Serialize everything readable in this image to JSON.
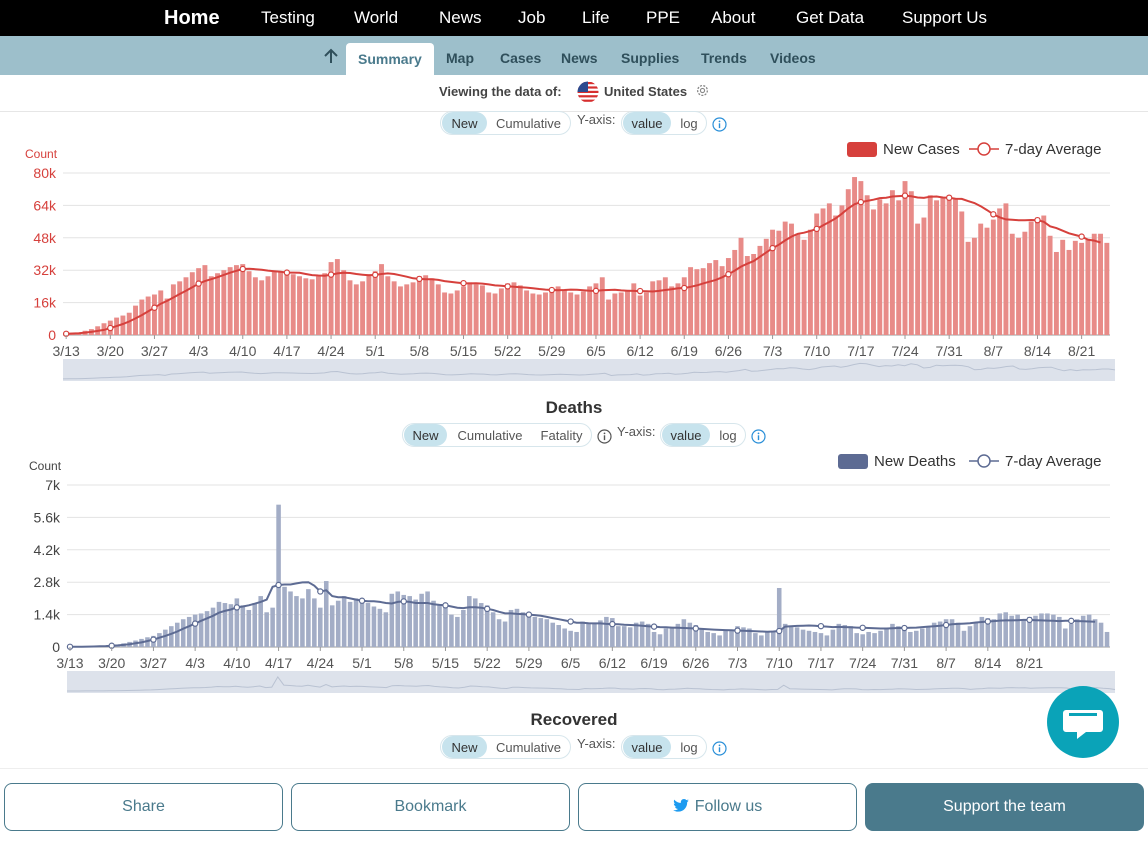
{
  "topnav": {
    "items": [
      "Home",
      "Testing",
      "World",
      "News",
      "Job",
      "Life",
      "PPE",
      "About",
      "Get Data",
      "Support Us"
    ]
  },
  "subnav": {
    "tabs": [
      "Summary",
      "Map",
      "Cases",
      "News",
      "Supplies",
      "Trends",
      "Videos"
    ],
    "active": "Summary",
    "icon": "arrow-up-icon"
  },
  "viewing": {
    "label": "Viewing the data of:",
    "country": "United States",
    "flag_icon": "us-flag-icon",
    "settings_icon": "gear-icon"
  },
  "cases_controls": {
    "mode": [
      "New",
      "Cumulative"
    ],
    "yaxis_label": "Y-axis:",
    "scale": [
      "value",
      "log"
    ],
    "selected_mode": "New",
    "selected_scale": "value"
  },
  "deaths_controls": {
    "mode": [
      "New",
      "Cumulative",
      "Fatality"
    ],
    "yaxis_label": "Y-axis:",
    "scale": [
      "value",
      "log"
    ],
    "selected_mode": "New",
    "selected_scale": "value"
  },
  "recovered_controls": {
    "mode": [
      "New",
      "Cumulative"
    ],
    "yaxis_label": "Y-axis:",
    "scale": [
      "value",
      "log"
    ],
    "selected_mode": "New",
    "selected_scale": "value"
  },
  "colors": {
    "cases_bar": "#e88b88",
    "cases_line": "#d6403c",
    "deaths_bar": "#a3adc6",
    "deaths_line": "#5d6b93",
    "nav_bg": "#000000",
    "subnav_bg": "#9dbfcb",
    "accent": "#4a7a8c",
    "chat": "#0aa3b8"
  },
  "chart_data": [
    {
      "id": "cases",
      "type": "bar",
      "title": "",
      "ylabel": "Count",
      "xlabel": "",
      "ylim": [
        0,
        80000
      ],
      "yticks": [
        "0",
        "16k",
        "32k",
        "48k",
        "64k",
        "80k"
      ],
      "legend": {
        "bar": "New Cases",
        "line": "7-day Average",
        "placement": "top-right"
      },
      "x_tick_labels": [
        "3/13",
        "3/20",
        "3/27",
        "4/3",
        "4/10",
        "4/17",
        "4/24",
        "5/1",
        "5/8",
        "5/15",
        "5/22",
        "5/29",
        "6/5",
        "6/12",
        "6/19",
        "6/26",
        "7/3",
        "7/10",
        "7/17",
        "7/24",
        "7/31",
        "8/7",
        "8/14",
        "8/21"
      ],
      "x_start": "3/13",
      "x_end": "8/23",
      "series": [
        {
          "name": "New Cases",
          "values": [
            600,
            900,
            1200,
            2100,
            2900,
            4300,
            5800,
            7100,
            8600,
            9600,
            11000,
            14500,
            17500,
            19000,
            20000,
            22000,
            18000,
            25000,
            26500,
            28500,
            31000,
            33000,
            34500,
            29000,
            30500,
            32000,
            33500,
            34500,
            35000,
            31500,
            28500,
            27000,
            29000,
            31500,
            31000,
            30500,
            30000,
            29000,
            28000,
            27500,
            29000,
            30500,
            36000,
            37500,
            32000,
            27000,
            25000,
            26500,
            30000,
            31500,
            35000,
            29000,
            26500,
            24000,
            25000,
            26000,
            29000,
            29500,
            28000,
            25000,
            21000,
            20500,
            22000,
            24000,
            26000,
            25000,
            24500,
            21000,
            20500,
            23000,
            25500,
            26000,
            24500,
            22000,
            20500,
            20000,
            21000,
            22500,
            24000,
            22500,
            21000,
            20000,
            21500,
            24000,
            25500,
            28500,
            17500,
            20500,
            21000,
            22000,
            25500,
            19500,
            21000,
            26500,
            27000,
            28500,
            24000,
            25500,
            28500,
            33500,
            32500,
            33000,
            35500,
            37000,
            34000,
            38000,
            42000,
            48000,
            39000,
            40000,
            44000,
            47500,
            52000,
            51500,
            56000,
            55000,
            50000,
            47000,
            52000,
            60000,
            62500,
            65000,
            59000,
            64000,
            72000,
            78000,
            76000,
            69000,
            62000,
            67000,
            65000,
            71500,
            66500,
            76000,
            71000,
            55000,
            58000,
            69000,
            66500,
            68000,
            69000,
            67000,
            61000,
            46000,
            48000,
            55000,
            53000,
            57000,
            62500,
            65000,
            50000,
            48000,
            51000,
            56000,
            58000,
            59000,
            49000,
            41000,
            47000,
            42000,
            46500,
            45500,
            47000,
            50000,
            50000,
            45500
          ],
          "color": "#e88b88"
        },
        {
          "name": "7-day Average",
          "values": [
            600,
            750,
            900,
            1200,
            1540,
            2000,
            2540,
            3430,
            4390,
            5440,
            6690,
            8190,
            9850,
            11640,
            13460,
            15470,
            16860,
            18500,
            20240,
            21850,
            23570,
            25380,
            26600,
            27560,
            28560,
            29660,
            30780,
            31720,
            32570,
            32700,
            32470,
            32200,
            31800,
            31500,
            31200,
            30800,
            30800,
            30700,
            30100,
            29600,
            29400,
            29300,
            29800,
            30400,
            30700,
            30600,
            30100,
            29800,
            29500,
            29700,
            30100,
            30400,
            30100,
            29500,
            28800,
            28000,
            27700,
            27500,
            27500,
            27200,
            26600,
            26200,
            25900,
            25600,
            25500,
            25600,
            25400,
            25000,
            24500,
            24300,
            24000,
            23800,
            23600,
            23400,
            23100,
            22700,
            22400,
            22200,
            22100,
            22200,
            22400,
            22300,
            22100,
            21900,
            21800,
            22100,
            22200,
            22300,
            22000,
            21900,
            21800,
            21700,
            21600,
            21500,
            21800,
            22200,
            22600,
            23100,
            23200,
            23800,
            24500,
            25500,
            26300,
            27200,
            28500,
            30000,
            31800,
            33800,
            35200,
            36500,
            38600,
            40800,
            42900,
            44600,
            46700,
            48600,
            50000,
            50500,
            51400,
            52400,
            54100,
            55800,
            57600,
            59900,
            62500,
            64600,
            65600,
            66200,
            66800,
            67600,
            67800,
            68400,
            68600,
            68800,
            68500,
            67900,
            67700,
            68300,
            68400,
            67900,
            67800,
            67300,
            67200,
            66100,
            65200,
            63600,
            61700,
            59600,
            58100,
            57100,
            56900,
            56700,
            56700,
            56800,
            56700,
            55900,
            53700,
            52800,
            51500,
            50200,
            49400,
            48600,
            47100,
            46600,
            45700
          ],
          "color": "#d6403c"
        }
      ]
    },
    {
      "id": "deaths",
      "type": "bar",
      "title": "Deaths",
      "ylabel": "Count",
      "xlabel": "",
      "ylim": [
        0,
        7000
      ],
      "yticks": [
        "0",
        "1.4k",
        "2.8k",
        "4.2k",
        "5.6k",
        "7k"
      ],
      "legend": {
        "bar": "New Deaths",
        "line": "7-day Average",
        "placement": "top-right"
      },
      "x_tick_labels": [
        "3/13",
        "3/20",
        "3/27",
        "4/3",
        "4/10",
        "4/17",
        "4/24",
        "5/1",
        "5/8",
        "5/15",
        "5/22",
        "5/29",
        "6/5",
        "6/12",
        "6/19",
        "6/26",
        "7/3",
        "7/10",
        "7/17",
        "7/24",
        "7/31",
        "8/7",
        "8/14",
        "8/21"
      ],
      "x_start": "3/13",
      "x_end": "8/23",
      "series": [
        {
          "name": "New Deaths",
          "values": [
            10,
            15,
            20,
            25,
            40,
            50,
            60,
            80,
            110,
            160,
            220,
            280,
            350,
            420,
            480,
            600,
            750,
            900,
            1050,
            1200,
            1300,
            1400,
            1450,
            1550,
            1700,
            1950,
            1900,
            1850,
            2100,
            1800,
            1600,
            1900,
            2200,
            1500,
            1700,
            6150,
            2600,
            2400,
            2200,
            2100,
            2500,
            2100,
            1700,
            2850,
            1800,
            2000,
            2200,
            1950,
            2100,
            2000,
            1900,
            1750,
            1650,
            1500,
            2300,
            2400,
            2250,
            2200,
            2050,
            2300,
            2400,
            2000,
            1800,
            1700,
            1400,
            1300,
            1600,
            2200,
            2100,
            1900,
            1800,
            1500,
            1200,
            1100,
            1600,
            1650,
            1500,
            1350,
            1300,
            1250,
            1200,
            1050,
            950,
            800,
            700,
            650,
            1100,
            1000,
            1050,
            1150,
            1300,
            1250,
            900,
            900,
            850,
            1050,
            1100,
            1000,
            650,
            550,
            800,
            850,
            1000,
            1200,
            1050,
            950,
            800,
            650,
            600,
            500,
            700,
            750,
            900,
            850,
            800,
            600,
            500,
            650,
            700,
            2550,
            1000,
            900,
            850,
            750,
            700,
            650,
            600,
            500,
            750,
            1000,
            950,
            900,
            600,
            550,
            650,
            600,
            700,
            800,
            1000,
            900,
            850,
            650,
            700,
            800,
            900,
            1050,
            1100,
            1200,
            1200,
            1050,
            700,
            900,
            1050,
            1300,
            1250,
            1200,
            1450,
            1500,
            1350,
            1400,
            1200,
            1300,
            1350,
            1450,
            1450,
            1400,
            1300,
            800,
            1000,
            1200,
            1350,
            1400,
            1200,
            1050,
            650
          ],
          "color": "#a3adc6"
        },
        {
          "name": "7-day Average",
          "values": [
            10,
            12,
            15,
            18,
            23,
            30,
            40,
            55,
            70,
            90,
            120,
            160,
            200,
            260,
            320,
            400,
            480,
            570,
            670,
            790,
            900,
            1010,
            1130,
            1240,
            1350,
            1480,
            1560,
            1620,
            1710,
            1750,
            1800,
            1870,
            1950,
            2050,
            2600,
            2680,
            2700,
            2700,
            2750,
            2790,
            2800,
            2650,
            2400,
            2450,
            2200,
            2150,
            2150,
            2100,
            2050,
            2000,
            1980,
            1980,
            1950,
            1900,
            1880,
            1950,
            1970,
            1950,
            1900,
            1900,
            1900,
            1850,
            1820,
            1800,
            1750,
            1700,
            1680,
            1720,
            1720,
            1700,
            1650,
            1600,
            1520,
            1450,
            1450,
            1430,
            1420,
            1400,
            1380,
            1350,
            1300,
            1250,
            1200,
            1150,
            1100,
            1050,
            1050,
            1030,
            1020,
            1020,
            1000,
            990,
            980,
            960,
            950,
            940,
            920,
            900,
            880,
            860,
            850,
            840,
            830,
            820,
            810,
            800,
            780,
            770,
            750,
            740,
            730,
            720,
            710,
            700,
            690,
            680,
            670,
            660,
            670,
            690,
            880,
            900,
            910,
            920,
            930,
            920,
            900,
            880,
            860,
            870,
            860,
            850,
            840,
            830,
            820,
            810,
            800,
            800,
            810,
            820,
            820,
            830,
            840,
            860,
            880,
            900,
            920,
            950,
            980,
            1000,
            1010,
            1030,
            1060,
            1080,
            1100,
            1120,
            1140,
            1150,
            1150,
            1160,
            1170,
            1170,
            1160,
            1150,
            1140,
            1130,
            1120,
            1130,
            1130,
            1120,
            1110,
            1100,
            1090
          ],
          "color": "#5d6b93"
        }
      ]
    }
  ],
  "recovered": {
    "title": "Recovered"
  },
  "bottombar": {
    "share": "Share",
    "bookmark": "Bookmark",
    "follow": "Follow us",
    "follow_icon": "twitter-icon",
    "support": "Support the team"
  },
  "chat": {
    "icon": "chat-bubble-icon"
  }
}
